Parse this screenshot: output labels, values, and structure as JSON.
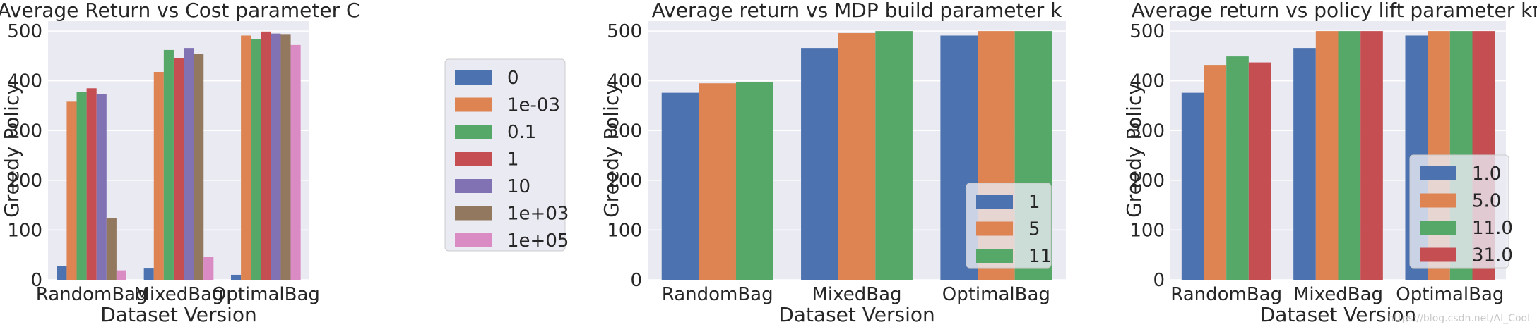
{
  "colors": {
    "plot_bg": "#eaeaf2",
    "grid": "#ffffff",
    "text": "#262626",
    "palette": [
      "#4c72b0",
      "#dd8452",
      "#55a868",
      "#c44e52",
      "#8172b3",
      "#937860",
      "#da8bc3"
    ]
  },
  "watermark": "https://blog.csdn.net/AI_Cool",
  "chart_data": [
    {
      "type": "bar",
      "title": "Average Return vs Cost parameter C",
      "xlabel": "Dataset Version",
      "ylabel": "Greedy Policy",
      "categories": [
        "RandomBag",
        "MixedBag",
        "OptimalBag"
      ],
      "ylim": [
        0,
        520
      ],
      "yticks": [
        0,
        100,
        200,
        300,
        400,
        500
      ],
      "grid": true,
      "legend_position": "outside-right",
      "series": [
        {
          "name": "0",
          "values": [
            28,
            24,
            10
          ]
        },
        {
          "name": "1e-03",
          "values": [
            358,
            418,
            491
          ]
        },
        {
          "name": "0.1",
          "values": [
            378,
            462,
            484
          ]
        },
        {
          "name": "1",
          "values": [
            385,
            446,
            499
          ]
        },
        {
          "name": "10",
          "values": [
            373,
            466,
            495
          ]
        },
        {
          "name": "1e+03",
          "values": [
            124,
            454,
            494
          ]
        },
        {
          "name": "1e+05",
          "values": [
            19,
            46,
            472
          ]
        }
      ]
    },
    {
      "type": "bar",
      "title": "Average return vs MDP build parameter k",
      "xlabel": "Dataset Version",
      "ylabel": "Greedy Policy",
      "categories": [
        "RandomBag",
        "MixedBag",
        "OptimalBag"
      ],
      "ylim": [
        0,
        520
      ],
      "yticks": [
        0,
        100,
        200,
        300,
        400,
        500
      ],
      "grid": true,
      "legend_position": "bottom-right",
      "series": [
        {
          "name": "1",
          "values": [
            376,
            466,
            491
          ]
        },
        {
          "name": "5",
          "values": [
            395,
            496,
            500
          ]
        },
        {
          "name": "11",
          "values": [
            398,
            500,
            500
          ]
        }
      ]
    },
    {
      "type": "bar",
      "title": "Average return vs policy lift parameter kπ",
      "xlabel": "Dataset Version",
      "ylabel": "Greedy Policy",
      "categories": [
        "RandomBag",
        "MixedBag",
        "OptimalBag"
      ],
      "ylim": [
        0,
        520
      ],
      "yticks": [
        0,
        100,
        200,
        300,
        400,
        500
      ],
      "grid": true,
      "legend_position": "bottom-right",
      "series": [
        {
          "name": "1.0",
          "values": [
            376,
            466,
            491
          ]
        },
        {
          "name": "5.0",
          "values": [
            432,
            500,
            500
          ]
        },
        {
          "name": "11.0",
          "values": [
            449,
            500,
            500
          ]
        },
        {
          "name": "31.0",
          "values": [
            437,
            500,
            500
          ]
        }
      ]
    }
  ]
}
